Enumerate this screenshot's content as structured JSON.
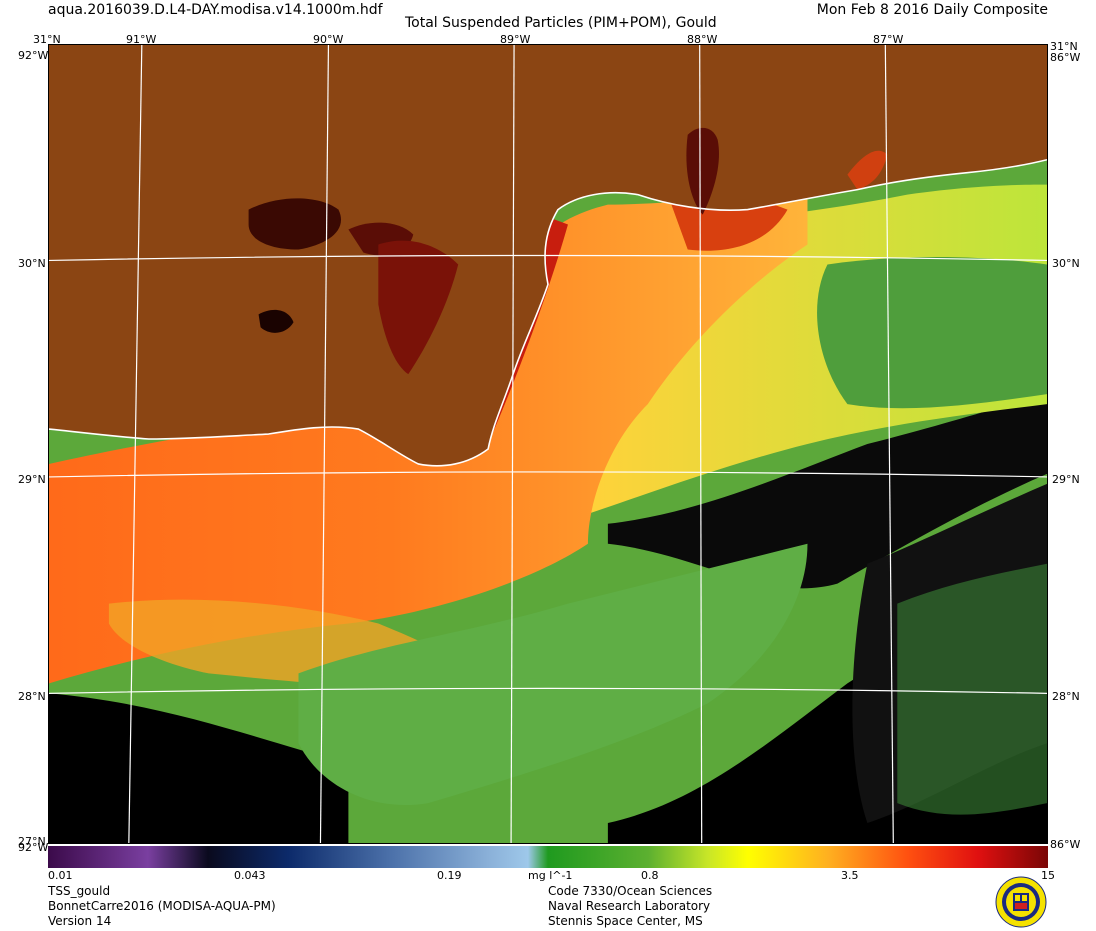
{
  "header": {
    "filename": "aqua.2016039.D.L4-DAY.modisa.v14.1000m.hdf",
    "title": "Total Suspended Particles (PIM+POM), Gould",
    "date": "Mon Feb  8 2016 Daily Composite"
  },
  "axes": {
    "lon_labels": [
      "91°W",
      "90°W",
      "89°W",
      "88°W",
      "87°W"
    ],
    "lat_labels": [
      "30°N",
      "29°N",
      "28°N"
    ],
    "corner_top": "31°N",
    "corner_bottom_left": "27°N",
    "corner_right_top": "86°W",
    "corner_right_bottom": "86°W",
    "corner_left_top": "92°W",
    "corner_left_bottom": "92°W"
  },
  "colorbar": {
    "min": "0.01",
    "t1": "0.043",
    "t2": "0.19",
    "units": "mg l^-1",
    "t3": "0.8",
    "t4": "3.5",
    "max": "15"
  },
  "footer": {
    "product": "TSS_gould",
    "project": "BonnetCarre2016 (MODISA-AQUA-PM)",
    "version": "Version 14",
    "code": "Code 7330/Ocean Sciences",
    "lab": "Naval Research Laboratory",
    "location": "Stennis Space Center, MS"
  },
  "colors": {
    "land": "#8b4513",
    "no_data": "#000000",
    "coast": "#ffffff"
  },
  "icons": {
    "logo": "nrl-seal-icon"
  }
}
